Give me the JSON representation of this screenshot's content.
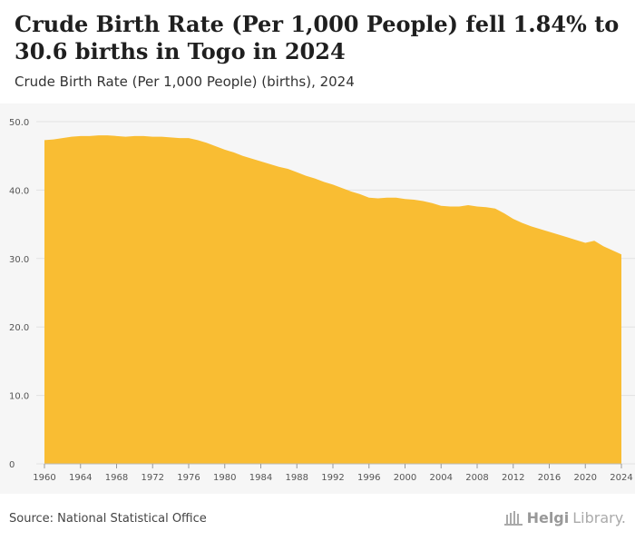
{
  "header": {
    "title": "Crude Birth Rate (Per 1,000 People) fell 1.84% to 30.6 births in Togo in 2024",
    "subtitle": "Crude Birth Rate (Per 1,000 People) (births), 2024"
  },
  "footer": {
    "source": "Source: National Statistical Office",
    "logo_name": "Helgi",
    "logo_suffix": "Library."
  },
  "colors": {
    "area": "#f9bd33",
    "grid": "#e2e2e2",
    "axis_text": "#555555",
    "background": "#f6f6f6"
  },
  "chart_data": {
    "type": "area",
    "title": "Crude Birth Rate (Per 1,000 People) fell 1.84% to 30.6 births in Togo in 2024",
    "subtitle": "Crude Birth Rate (Per 1,000 People) (births), 2024",
    "xlim": [
      1960,
      2024
    ],
    "ylim": [
      0,
      50
    ],
    "grid": true,
    "x_ticks": [
      1960,
      1964,
      1968,
      1972,
      1976,
      1980,
      1984,
      1988,
      1992,
      1996,
      2000,
      2004,
      2008,
      2012,
      2016,
      2020,
      2024
    ],
    "y_ticks": [
      0,
      10,
      20,
      30,
      40,
      50
    ],
    "y_tick_labels": [
      "0",
      "10.0",
      "20.0",
      "30.0",
      "40.0",
      "50.0"
    ],
    "x": [
      1960,
      1961,
      1962,
      1963,
      1964,
      1965,
      1966,
      1967,
      1968,
      1969,
      1970,
      1971,
      1972,
      1973,
      1974,
      1975,
      1976,
      1977,
      1978,
      1979,
      1980,
      1981,
      1982,
      1983,
      1984,
      1985,
      1986,
      1987,
      1988,
      1989,
      1990,
      1991,
      1992,
      1993,
      1994,
      1995,
      1996,
      1997,
      1998,
      1999,
      2000,
      2001,
      2002,
      2003,
      2004,
      2005,
      2006,
      2007,
      2008,
      2009,
      2010,
      2011,
      2012,
      2013,
      2014,
      2015,
      2016,
      2017,
      2018,
      2019,
      2020,
      2021,
      2022,
      2023,
      2024
    ],
    "values": [
      47.3,
      47.4,
      47.6,
      47.8,
      47.9,
      47.9,
      48.0,
      48.0,
      47.9,
      47.8,
      47.9,
      47.9,
      47.8,
      47.8,
      47.7,
      47.6,
      47.6,
      47.3,
      46.9,
      46.4,
      45.9,
      45.5,
      45.0,
      44.6,
      44.2,
      43.8,
      43.4,
      43.1,
      42.6,
      42.1,
      41.7,
      41.2,
      40.8,
      40.3,
      39.8,
      39.4,
      38.9,
      38.8,
      38.9,
      38.9,
      38.7,
      38.6,
      38.4,
      38.1,
      37.7,
      37.6,
      37.6,
      37.8,
      37.6,
      37.5,
      37.3,
      36.6,
      35.8,
      35.2,
      34.7,
      34.3,
      33.9,
      33.5,
      33.1,
      32.7,
      32.3,
      32.6,
      31.8,
      31.2,
      30.6
    ]
  }
}
